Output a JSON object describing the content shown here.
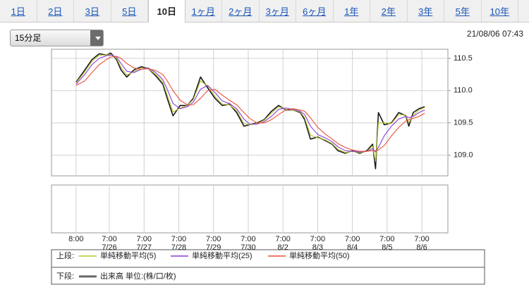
{
  "tabs": [
    "1日",
    "2日",
    "3日",
    "5日",
    "10日",
    "1ヶ月",
    "2ヶ月",
    "3ヶ月",
    "6ヶ月",
    "1年",
    "2年",
    "3年",
    "5年",
    "10年"
  ],
  "interval_select": "15分足",
  "timestamp": "21/08/06 07:43",
  "legend": {
    "upper": "上段:",
    "lower": "下段:",
    "volume": "出来高 単位:(株/口/枚)",
    "volume_color": "#666666"
  },
  "chart_data": {
    "type": "line",
    "grid": true,
    "xlim": [
      -17,
      257
    ],
    "ylim": [
      108.68,
      110.64
    ],
    "xticks": [
      {
        "value": 0,
        "label": "8:00"
      },
      {
        "value": 23,
        "label": "7:00\n7/26"
      },
      {
        "value": 47,
        "label": "7:00\n7/27"
      },
      {
        "value": 71,
        "label": "7:00\n7/28"
      },
      {
        "value": 95,
        "label": "7:00\n7/29"
      },
      {
        "value": 119,
        "label": "7:00\n7/30"
      },
      {
        "value": 143,
        "label": "7:00\n8/2"
      },
      {
        "value": 167,
        "label": "7:00\n8/3"
      },
      {
        "value": 191,
        "label": "7:00\n8/4"
      },
      {
        "value": 215,
        "label": "7:00\n8/5"
      },
      {
        "value": 239,
        "label": "7:00\n8/6"
      }
    ],
    "yticks": [
      {
        "value": 109,
        "label": "109.0"
      },
      109.5,
      {
        "value": 110,
        "label": "110.0"
      },
      110.5
    ],
    "x": [
      0,
      6,
      11,
      16,
      21,
      24,
      28,
      31,
      35,
      40,
      45,
      50,
      55,
      60,
      63,
      67,
      72,
      77,
      81,
      86,
      91,
      96,
      101,
      106,
      111,
      116,
      120,
      125,
      130,
      135,
      140,
      145,
      150,
      155,
      158,
      162,
      167,
      172,
      177,
      181,
      186,
      191,
      196,
      201,
      205,
      207,
      209,
      213,
      218,
      223,
      228,
      230,
      233,
      237,
      241
    ],
    "series": [
      {
        "color": "#1a1a1a",
        "values": [
          110.13,
          110.32,
          110.48,
          110.57,
          110.55,
          110.58,
          110.48,
          110.32,
          110.21,
          110.32,
          110.37,
          110.34,
          110.23,
          110.1,
          109.88,
          109.61,
          109.77,
          109.77,
          109.88,
          110.21,
          110.04,
          109.88,
          109.77,
          109.79,
          109.66,
          109.45,
          109.47,
          109.5,
          109.55,
          109.68,
          109.77,
          109.7,
          109.7,
          109.66,
          109.55,
          109.25,
          109.28,
          109.23,
          109.17,
          109.07,
          109.03,
          109.07,
          109.03,
          109.07,
          109.17,
          108.79,
          109.66,
          109.47,
          109.5,
          109.66,
          109.61,
          109.45,
          109.66,
          109.72,
          109.75
        ]
      },
      {
        "name": "単純移動平均(5)",
        "color": "#b8c72e",
        "values": [
          110.12,
          110.29,
          110.45,
          110.55,
          110.55,
          110.56,
          110.5,
          110.36,
          110.24,
          110.29,
          110.35,
          110.34,
          110.25,
          110.13,
          109.93,
          109.67,
          109.73,
          109.77,
          109.86,
          110.15,
          110.07,
          109.91,
          109.79,
          109.78,
          109.69,
          109.49,
          109.47,
          109.49,
          109.54,
          109.65,
          109.75,
          109.71,
          109.7,
          109.67,
          109.58,
          109.31,
          109.27,
          109.24,
          109.18,
          109.09,
          109.04,
          109.06,
          109.04,
          109.06,
          109.14,
          108.9,
          109.5,
          109.5,
          109.49,
          109.63,
          109.62,
          109.5,
          109.62,
          109.7,
          109.74
        ]
      },
      {
        "name": "単純移動平均(25)",
        "color": "#8a3cd8",
        "values": [
          110.1,
          110.25,
          110.4,
          110.5,
          110.54,
          110.55,
          110.52,
          110.42,
          110.3,
          110.28,
          110.33,
          110.35,
          110.28,
          110.17,
          110.02,
          109.8,
          109.72,
          109.75,
          109.82,
          110.02,
          110.08,
          109.97,
          109.84,
          109.8,
          109.72,
          109.56,
          109.48,
          109.48,
          109.52,
          109.6,
          109.71,
          109.73,
          109.71,
          109.68,
          109.63,
          109.45,
          109.32,
          109.27,
          109.21,
          109.13,
          109.07,
          109.06,
          109.05,
          109.06,
          109.1,
          109.05,
          109.12,
          109.3,
          109.45,
          109.56,
          109.6,
          109.58,
          109.6,
          109.66,
          109.7
        ]
      },
      {
        "name": "単純移動平均(50)",
        "color": "#e8503a",
        "values": [
          110.08,
          110.15,
          110.28,
          110.4,
          110.48,
          110.52,
          110.53,
          110.5,
          110.42,
          110.35,
          110.33,
          110.34,
          110.31,
          110.25,
          110.15,
          110.0,
          109.85,
          109.78,
          109.78,
          109.88,
          110.0,
          110.02,
          109.93,
          109.85,
          109.78,
          109.66,
          109.57,
          109.5,
          109.5,
          109.55,
          109.63,
          109.7,
          109.72,
          109.7,
          109.68,
          109.58,
          109.43,
          109.33,
          109.25,
          109.18,
          109.12,
          109.08,
          109.06,
          109.06,
          109.07,
          109.07,
          109.08,
          109.15,
          109.3,
          109.43,
          109.53,
          109.55,
          109.57,
          109.6,
          109.65
        ]
      }
    ]
  }
}
